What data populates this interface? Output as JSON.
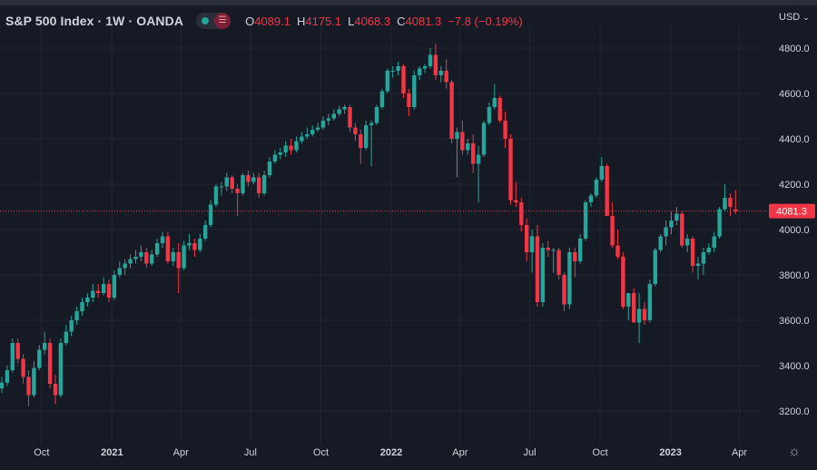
{
  "header": {
    "title": "S&P 500 Index · 1W · OANDA",
    "ohlc": [
      {
        "k": "O",
        "v": "4089.1"
      },
      {
        "k": "H",
        "v": "4175.1"
      },
      {
        "k": "L",
        "v": "4068.3"
      },
      {
        "k": "C",
        "v": "4081.3"
      },
      {
        "k": "",
        "v": "−7.8 (−0.19%)"
      }
    ],
    "currency": "USD"
  },
  "colors": {
    "background": "#161a25",
    "grid": "#232733",
    "up": "#26a69a",
    "down": "#f23645",
    "text": "#d1d4dc"
  },
  "icons": {
    "toggle": "chart-style-toggle-icon",
    "currency_caret": "chevron-down-icon",
    "settings": "gear-icon"
  },
  "chart_data": {
    "type": "candlestick",
    "title": "S&P 500 Index · 1W · OANDA",
    "ylim": [
      3100,
      4900
    ],
    "y_ticks": [
      3200,
      3400,
      3600,
      3800,
      4000,
      4200,
      4400,
      4600,
      4800
    ],
    "y_tick_labels": [
      "3200.0",
      "3400.0",
      "3600.0",
      "3800.0",
      "4000.0",
      "4200.0",
      "4400.0",
      "4600.0",
      "4800.0"
    ],
    "x_ticks": [
      {
        "label": "Oct",
        "date": "2020-10-01"
      },
      {
        "label": "2021",
        "date": "2021-01-01",
        "bold": true
      },
      {
        "label": "Apr",
        "date": "2021-04-01"
      },
      {
        "label": "Jul",
        "date": "2021-07-01"
      },
      {
        "label": "Oct",
        "date": "2021-10-01"
      },
      {
        "label": "2022",
        "date": "2022-01-01",
        "bold": true
      },
      {
        "label": "Apr",
        "date": "2022-04-01"
      },
      {
        "label": "Jul",
        "date": "2022-07-01"
      },
      {
        "label": "Oct",
        "date": "2022-10-01"
      },
      {
        "label": "2023",
        "date": "2023-01-01",
        "bold": true
      },
      {
        "label": "Apr",
        "date": "2023-04-01"
      }
    ],
    "last_price": 4081.3,
    "last_price_label": "4081.3",
    "grid": true,
    "closes": [
      3325,
      3380,
      3500,
      3430,
      3350,
      3270,
      3390,
      3470,
      3500,
      3320,
      3270,
      3500,
      3550,
      3600,
      3640,
      3680,
      3700,
      3730,
      3720,
      3760,
      3700,
      3800,
      3830,
      3850,
      3870,
      3880,
      3900,
      3850,
      3890,
      3940,
      3970,
      3860,
      3900,
      3830,
      3930,
      3940,
      3910,
      3960,
      4020,
      4110,
      4190,
      4190,
      4230,
      4180,
      4160,
      4240,
      4210,
      4230,
      4160,
      4240,
      4300,
      4330,
      4340,
      4370,
      4350,
      4390,
      4410,
      4420,
      4440,
      4450,
      4480,
      4490,
      4510,
      4530,
      4540,
      4450,
      4420,
      4360,
      4460,
      4470,
      4540,
      4610,
      4700,
      4700,
      4720,
      4600,
      4540,
      4680,
      4710,
      4720,
      4770,
      4680,
      4700,
      4650,
      4400,
      4430,
      4350,
      4380,
      4290,
      4330,
      4470,
      4540,
      4580,
      4480,
      4400,
      4130,
      4120,
      4020,
      3900,
      3970,
      3680,
      3920,
      3910,
      3910,
      3800,
      3670,
      3900,
      3860,
      3960,
      4120,
      4150,
      4220,
      4280,
      4060,
      3930,
      3880,
      3660,
      3720,
      3590,
      3650,
      3600,
      3760,
      3910,
      3970,
      4010,
      4040,
      4070,
      3930,
      3960,
      3840,
      3850,
      3900,
      3920,
      3970,
      4090,
      4140,
      4100,
      4081
    ],
    "series": [
      {
        "name": "S&P 500 Index",
        "x_start": "2020-08-10",
        "interval": "1W",
        "ohlc": [
          [
            3300,
            3350,
            3280,
            3325
          ],
          [
            3325,
            3400,
            3310,
            3380
          ],
          [
            3380,
            3520,
            3370,
            3500
          ],
          [
            3500,
            3520,
            3410,
            3430
          ],
          [
            3430,
            3450,
            3320,
            3350
          ],
          [
            3350,
            3380,
            3220,
            3270
          ],
          [
            3270,
            3420,
            3260,
            3390
          ],
          [
            3390,
            3490,
            3380,
            3470
          ],
          [
            3470,
            3550,
            3450,
            3500
          ],
          [
            3500,
            3520,
            3300,
            3320
          ],
          [
            3320,
            3360,
            3230,
            3270
          ],
          [
            3270,
            3520,
            3260,
            3500
          ],
          [
            3500,
            3580,
            3490,
            3550
          ],
          [
            3550,
            3620,
            3530,
            3600
          ],
          [
            3600,
            3660,
            3580,
            3640
          ],
          [
            3640,
            3700,
            3620,
            3680
          ],
          [
            3680,
            3720,
            3660,
            3700
          ],
          [
            3700,
            3760,
            3680,
            3730
          ],
          [
            3730,
            3760,
            3700,
            3720
          ],
          [
            3720,
            3790,
            3710,
            3760
          ],
          [
            3760,
            3780,
            3680,
            3700
          ],
          [
            3700,
            3820,
            3690,
            3800
          ],
          [
            3800,
            3860,
            3790,
            3830
          ],
          [
            3830,
            3870,
            3800,
            3850
          ],
          [
            3850,
            3890,
            3830,
            3870
          ],
          [
            3870,
            3910,
            3850,
            3880
          ],
          [
            3880,
            3930,
            3860,
            3900
          ],
          [
            3900,
            3920,
            3830,
            3850
          ],
          [
            3850,
            3910,
            3840,
            3890
          ],
          [
            3890,
            3960,
            3880,
            3940
          ],
          [
            3940,
            3990,
            3920,
            3970
          ],
          [
            3970,
            3990,
            3850,
            3860
          ],
          [
            3860,
            3920,
            3840,
            3900
          ],
          [
            3900,
            3940,
            3720,
            3830
          ],
          [
            3830,
            3950,
            3820,
            3930
          ],
          [
            3930,
            3980,
            3910,
            3940
          ],
          [
            3940,
            3960,
            3880,
            3910
          ],
          [
            3910,
            3980,
            3900,
            3960
          ],
          [
            3960,
            4040,
            3950,
            4020
          ],
          [
            4020,
            4130,
            4010,
            4110
          ],
          [
            4110,
            4200,
            4100,
            4190
          ],
          [
            4190,
            4210,
            4150,
            4190
          ],
          [
            4190,
            4250,
            4170,
            4230
          ],
          [
            4230,
            4240,
            4160,
            4180
          ],
          [
            4180,
            4200,
            4060,
            4160
          ],
          [
            4160,
            4250,
            4150,
            4240
          ],
          [
            4240,
            4260,
            4190,
            4210
          ],
          [
            4210,
            4250,
            4200,
            4230
          ],
          [
            4230,
            4250,
            4140,
            4160
          ],
          [
            4160,
            4260,
            4150,
            4240
          ],
          [
            4240,
            4320,
            4230,
            4300
          ],
          [
            4300,
            4350,
            4290,
            4330
          ],
          [
            4330,
            4360,
            4310,
            4340
          ],
          [
            4340,
            4390,
            4320,
            4370
          ],
          [
            4370,
            4400,
            4330,
            4350
          ],
          [
            4350,
            4410,
            4340,
            4390
          ],
          [
            4390,
            4430,
            4380,
            4410
          ],
          [
            4410,
            4450,
            4400,
            4420
          ],
          [
            4420,
            4460,
            4410,
            4440
          ],
          [
            4440,
            4470,
            4430,
            4450
          ],
          [
            4450,
            4500,
            4440,
            4480
          ],
          [
            4480,
            4510,
            4460,
            4490
          ],
          [
            4490,
            4530,
            4480,
            4510
          ],
          [
            4510,
            4545,
            4500,
            4530
          ],
          [
            4530,
            4550,
            4510,
            4540
          ],
          [
            4540,
            4550,
            4430,
            4450
          ],
          [
            4450,
            4470,
            4390,
            4420
          ],
          [
            4420,
            4440,
            4290,
            4360
          ],
          [
            4360,
            4480,
            4350,
            4460
          ],
          [
            4460,
            4480,
            4280,
            4470
          ],
          [
            4470,
            4550,
            4460,
            4540
          ],
          [
            4540,
            4620,
            4530,
            4610
          ],
          [
            4610,
            4710,
            4600,
            4700
          ],
          [
            4700,
            4720,
            4670,
            4700
          ],
          [
            4700,
            4740,
            4680,
            4720
          ],
          [
            4720,
            4730,
            4580,
            4600
          ],
          [
            4600,
            4620,
            4500,
            4540
          ],
          [
            4540,
            4700,
            4530,
            4680
          ],
          [
            4680,
            4720,
            4660,
            4710
          ],
          [
            4710,
            4730,
            4690,
            4720
          ],
          [
            4720,
            4800,
            4710,
            4770
          ],
          [
            4770,
            4820,
            4660,
            4680
          ],
          [
            4680,
            4720,
            4650,
            4700
          ],
          [
            4700,
            4750,
            4620,
            4650
          ],
          [
            4650,
            4660,
            4380,
            4400
          ],
          [
            4400,
            4450,
            4230,
            4430
          ],
          [
            4430,
            4480,
            4330,
            4350
          ],
          [
            4350,
            4400,
            4330,
            4380
          ],
          [
            4380,
            4420,
            4250,
            4290
          ],
          [
            4290,
            4370,
            4120,
            4330
          ],
          [
            4330,
            4480,
            4320,
            4470
          ],
          [
            4470,
            4560,
            4460,
            4540
          ],
          [
            4540,
            4640,
            4530,
            4580
          ],
          [
            4580,
            4590,
            4470,
            4480
          ],
          [
            4480,
            4520,
            4360,
            4400
          ],
          [
            4400,
            4420,
            4110,
            4130
          ],
          [
            4130,
            4210,
            4100,
            4120
          ],
          [
            4120,
            4140,
            3990,
            4020
          ],
          [
            4020,
            4050,
            3860,
            3900
          ],
          [
            3900,
            4000,
            3810,
            3970
          ],
          [
            3970,
            4020,
            3660,
            3680
          ],
          [
            3680,
            3940,
            3660,
            3920
          ],
          [
            3920,
            3950,
            3880,
            3910
          ],
          [
            3910,
            3920,
            3810,
            3910
          ],
          [
            3910,
            3920,
            3780,
            3800
          ],
          [
            3800,
            3810,
            3640,
            3670
          ],
          [
            3670,
            3920,
            3650,
            3900
          ],
          [
            3900,
            3920,
            3790,
            3860
          ],
          [
            3860,
            3980,
            3850,
            3960
          ],
          [
            3960,
            4130,
            3950,
            4120
          ],
          [
            4120,
            4160,
            4100,
            4150
          ],
          [
            4150,
            4230,
            4140,
            4220
          ],
          [
            4220,
            4320,
            4210,
            4280
          ],
          [
            4280,
            4290,
            4060,
            4060
          ],
          [
            4060,
            4120,
            3920,
            3930
          ],
          [
            3930,
            4000,
            3870,
            3880
          ],
          [
            3880,
            3900,
            3650,
            3660
          ],
          [
            3660,
            3720,
            3600,
            3720
          ],
          [
            3720,
            3740,
            3590,
            3590
          ],
          [
            3590,
            3720,
            3500,
            3650
          ],
          [
            3650,
            3680,
            3580,
            3600
          ],
          [
            3600,
            3780,
            3590,
            3760
          ],
          [
            3760,
            3920,
            3750,
            3910
          ],
          [
            3910,
            3980,
            3900,
            3970
          ],
          [
            3970,
            4040,
            3930,
            4010
          ],
          [
            4010,
            4080,
            3980,
            4040
          ],
          [
            4040,
            4100,
            4020,
            4070
          ],
          [
            4070,
            4080,
            3920,
            3930
          ],
          [
            3930,
            3980,
            3900,
            3960
          ],
          [
            3960,
            3970,
            3810,
            3840
          ],
          [
            3840,
            3880,
            3780,
            3850
          ],
          [
            3850,
            3920,
            3800,
            3900
          ],
          [
            3900,
            3940,
            3890,
            3920
          ],
          [
            3920,
            3990,
            3900,
            3970
          ],
          [
            3970,
            4100,
            3960,
            4090
          ],
          [
            4090,
            4200,
            4080,
            4140
          ],
          [
            4140,
            4160,
            4060,
            4100
          ],
          [
            4089.1,
            4175.1,
            4068.3,
            4081.3
          ]
        ]
      }
    ]
  }
}
